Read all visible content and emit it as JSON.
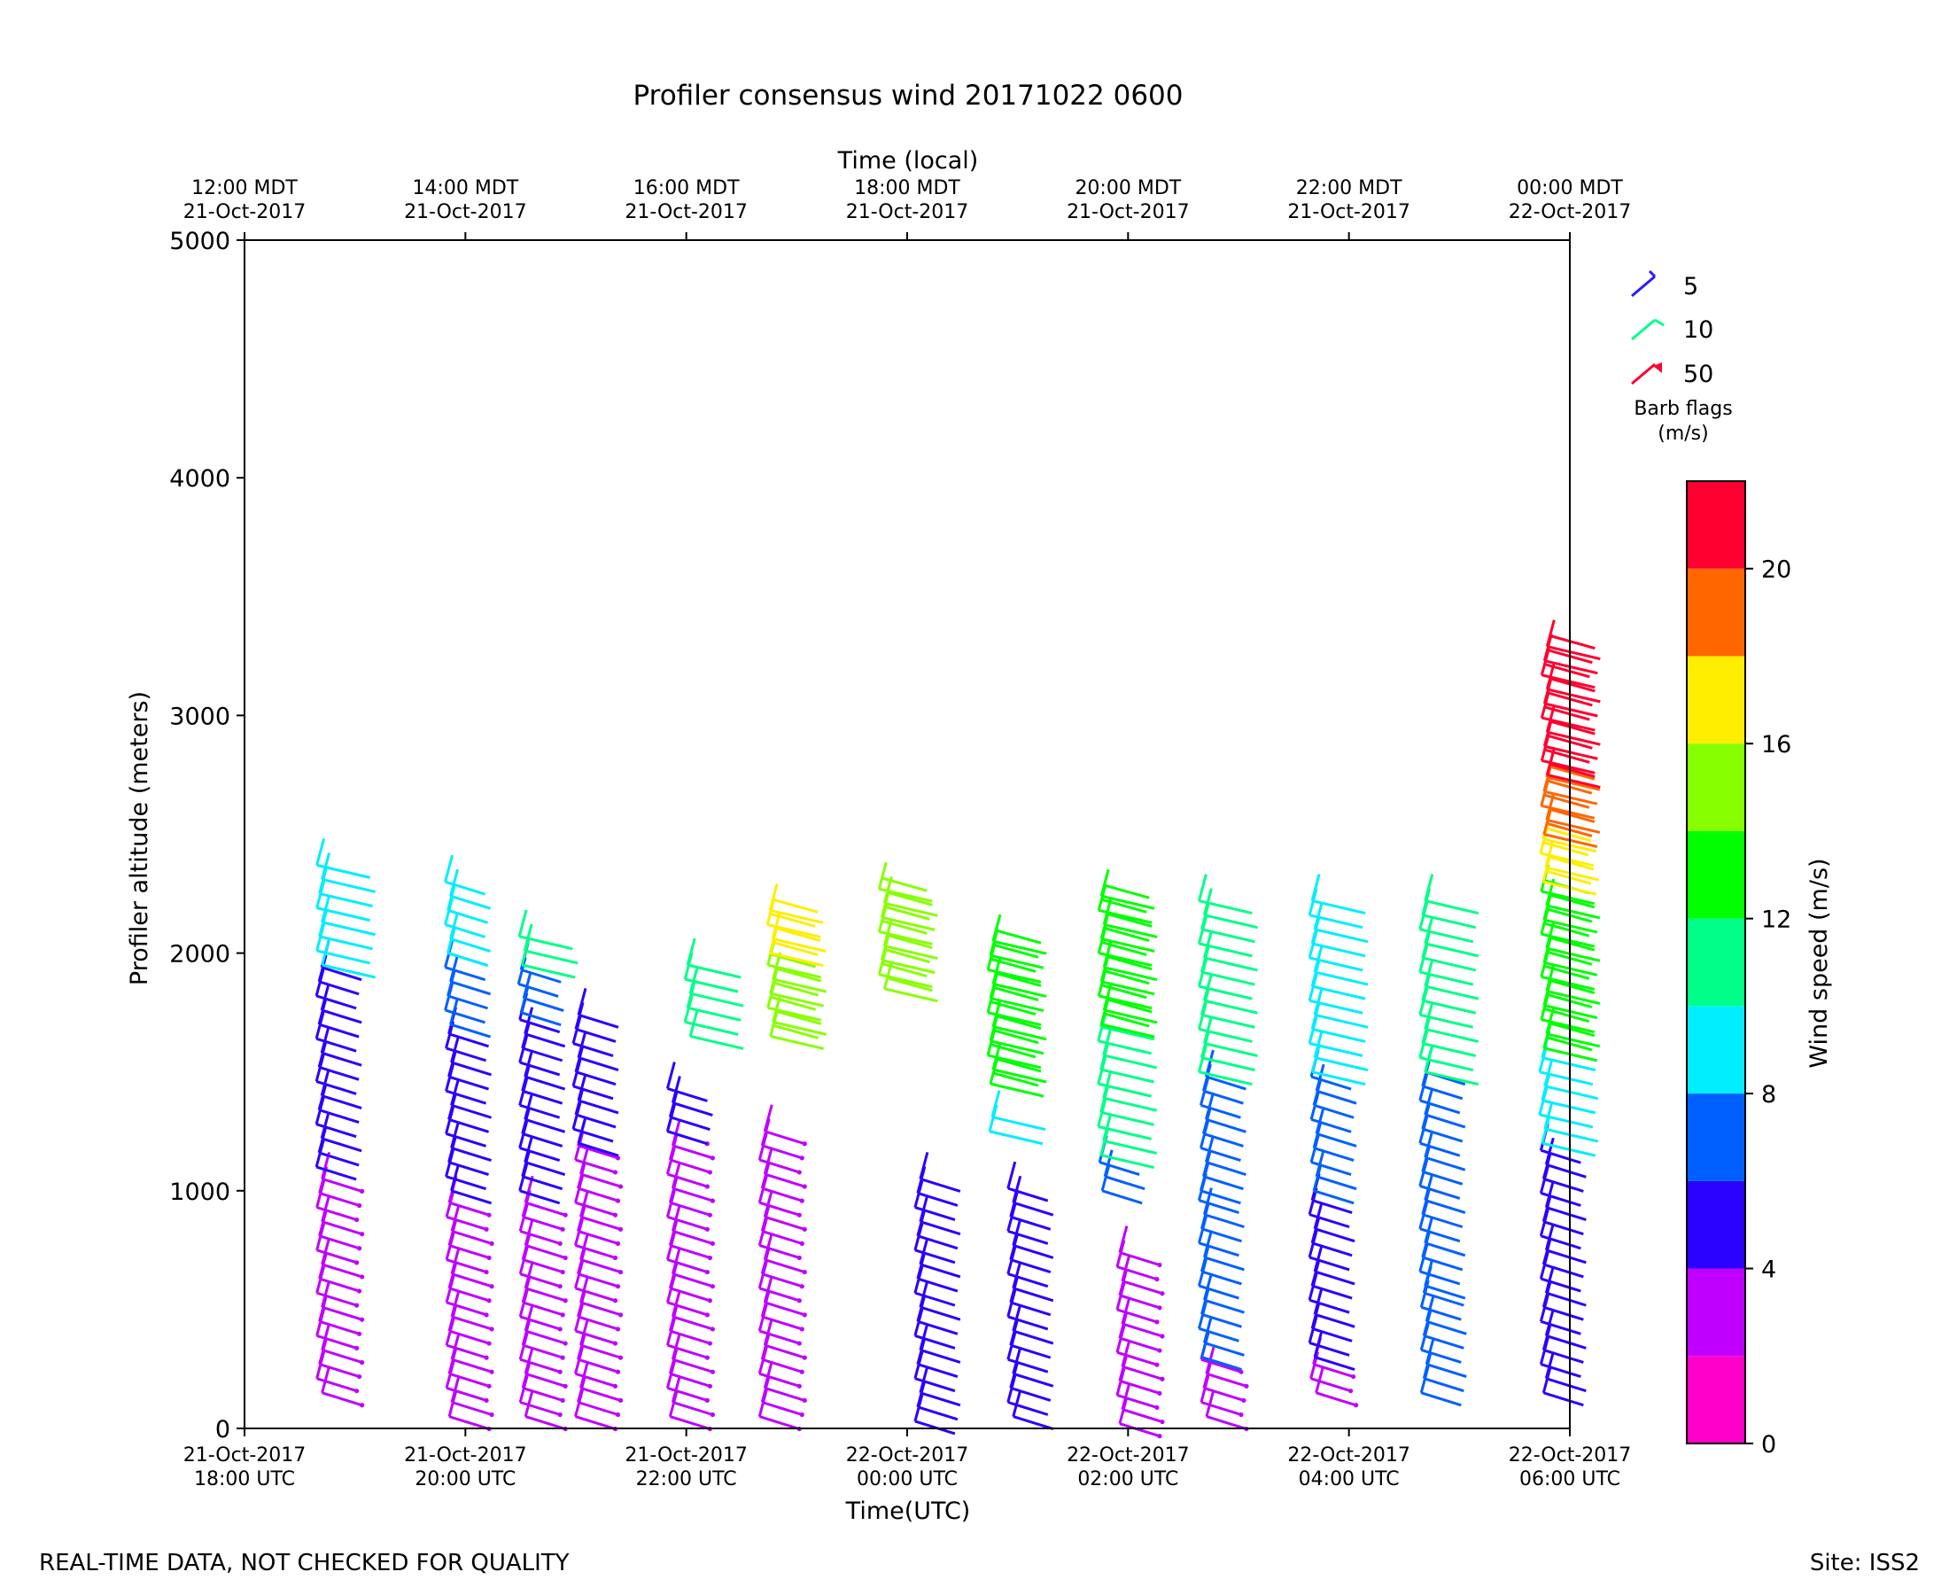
{
  "chart_data": {
    "type": "wind-barb",
    "title": "Profiler consensus wind 20171022 0600",
    "top_axis_label": "Time (local)",
    "xlabel": "Time(UTC)",
    "ylabel": "Profiler altitude (meters)",
    "ylim": [
      0,
      5000
    ],
    "y_ticks": [
      "0",
      "1000",
      "2000",
      "3000",
      "4000",
      "5000"
    ],
    "x_ticks_utc": [
      {
        "date": "21-Oct-2017",
        "time": "18:00 UTC"
      },
      {
        "date": "21-Oct-2017",
        "time": "20:00 UTC"
      },
      {
        "date": "21-Oct-2017",
        "time": "22:00 UTC"
      },
      {
        "date": "22-Oct-2017",
        "time": "00:00 UTC"
      },
      {
        "date": "22-Oct-2017",
        "time": "02:00 UTC"
      },
      {
        "date": "22-Oct-2017",
        "time": "04:00 UTC"
      },
      {
        "date": "22-Oct-2017",
        "time": "06:00 UTC"
      }
    ],
    "x_ticks_local": [
      {
        "time": "12:00 MDT",
        "date": "21-Oct-2017"
      },
      {
        "time": "14:00 MDT",
        "date": "21-Oct-2017"
      },
      {
        "time": "16:00 MDT",
        "date": "21-Oct-2017"
      },
      {
        "time": "18:00 MDT",
        "date": "21-Oct-2017"
      },
      {
        "time": "20:00 MDT",
        "date": "21-Oct-2017"
      },
      {
        "time": "22:00 MDT",
        "date": "21-Oct-2017"
      },
      {
        "time": "00:00 MDT",
        "date": "22-Oct-2017"
      }
    ],
    "barb_legend": {
      "entries": [
        {
          "label": "5",
          "color": "#2a1aff"
        },
        {
          "label": "10",
          "color": "#00ff88"
        },
        {
          "label": "50",
          "color": "#ff0030"
        }
      ],
      "title": "Barb flags",
      "units": "(m/s)"
    },
    "colorbar": {
      "label": "Wind speed (m/s)",
      "ticks": [
        "0",
        "4",
        "8",
        "12",
        "16",
        "20"
      ],
      "range": [
        0,
        22
      ],
      "bins": [
        {
          "min": 0,
          "max": 2,
          "color": "#ff00c8"
        },
        {
          "min": 2,
          "max": 4,
          "color": "#c000ff"
        },
        {
          "min": 4,
          "max": 6,
          "color": "#2a00ff"
        },
        {
          "min": 6,
          "max": 8,
          "color": "#0060ff"
        },
        {
          "min": 8,
          "max": 10,
          "color": "#00eeff"
        },
        {
          "min": 10,
          "max": 12,
          "color": "#00ff88"
        },
        {
          "min": 12,
          "max": 14,
          "color": "#00ff00"
        },
        {
          "min": 14,
          "max": 16,
          "color": "#88ff00"
        },
        {
          "min": 16,
          "max": 18,
          "color": "#ffee00"
        },
        {
          "min": 18,
          "max": 20,
          "color": "#ff6600"
        },
        {
          "min": 20,
          "max": 22,
          "color": "#ff0030"
        }
      ]
    },
    "profiles": [
      {
        "time_utc": "18:40",
        "max_alt": 2400,
        "segments": [
          [
            150,
            1100,
            2
          ],
          [
            1100,
            1950,
            5
          ],
          [
            1950,
            2400,
            9
          ]
        ]
      },
      {
        "time_utc": "19:50",
        "max_alt": 2300,
        "segments": [
          [
            50,
            1000,
            3
          ],
          [
            1000,
            1700,
            5
          ],
          [
            1700,
            2000,
            7
          ],
          [
            2000,
            2300,
            8
          ]
        ]
      },
      {
        "time_utc": "20:30",
        "max_alt": 2100,
        "segments": [
          [
            50,
            1000,
            3
          ],
          [
            1000,
            1750,
            5
          ],
          [
            1750,
            1950,
            7
          ],
          [
            1950,
            2100,
            11
          ]
        ]
      },
      {
        "time_utc": "21:00",
        "max_alt": 1750,
        "segments": [
          [
            50,
            1200,
            3
          ],
          [
            1200,
            1750,
            5
          ]
        ]
      },
      {
        "time_utc": "21:50",
        "max_alt": 1450,
        "segments": [
          [
            50,
            1250,
            3
          ],
          [
            1250,
            1450,
            5
          ]
        ]
      },
      {
        "time_utc": "22:00",
        "max_alt": 2000,
        "segments": [
          [
            1650,
            2000,
            11
          ]
        ]
      },
      {
        "time_utc": "22:40",
        "max_alt": 1250,
        "segments": [
          [
            50,
            1250,
            3
          ]
        ]
      },
      {
        "time_utc": "22:45",
        "max_alt": 2200,
        "segments": [
          [
            1650,
            2000,
            15
          ],
          [
            2000,
            2200,
            17
          ]
        ]
      },
      {
        "time_utc": "23:45",
        "max_alt": 2300,
        "segments": [
          [
            1850,
            2300,
            15
          ]
        ]
      },
      {
        "time_utc": "00:05",
        "max_alt": 1050,
        "segments": [
          [
            30,
            1050,
            5
          ]
        ]
      },
      {
        "time_utc": "00:45",
        "max_alt": 2080,
        "segments": [
          [
            1250,
            1350,
            9
          ],
          [
            1450,
            2080,
            13
          ]
        ]
      },
      {
        "time_utc": "00:55",
        "max_alt": 1050,
        "segments": [
          [
            50,
            1050,
            5
          ]
        ]
      },
      {
        "time_utc": "01:45",
        "max_alt": 2250,
        "segments": [
          [
            1000,
            1150,
            7
          ],
          [
            1150,
            1700,
            10
          ],
          [
            1700,
            2250,
            13
          ]
        ]
      },
      {
        "time_utc": "01:55",
        "max_alt": 780,
        "segments": [
          [
            20,
            780,
            3
          ]
        ]
      },
      {
        "time_utc": "02:40",
        "max_alt": 2250,
        "segments": [
          [
            50,
            300,
            2
          ],
          [
            300,
            1000,
            7
          ],
          [
            1000,
            1500,
            7
          ],
          [
            1500,
            2250,
            10
          ]
        ]
      },
      {
        "time_utc": "03:40",
        "max_alt": 2250,
        "segments": [
          [
            150,
            300,
            3
          ],
          [
            300,
            1000,
            5
          ],
          [
            1000,
            1500,
            7
          ],
          [
            1500,
            2250,
            9
          ]
        ]
      },
      {
        "time_utc": "04:40",
        "max_alt": 2250,
        "segments": [
          [
            150,
            600,
            6
          ],
          [
            600,
            1500,
            6
          ],
          [
            1500,
            2250,
            10
          ]
        ]
      },
      {
        "time_utc": "05:45",
        "max_alt": 3300,
        "segments": [
          [
            150,
            1200,
            5
          ],
          [
            1200,
            1600,
            9
          ],
          [
            1600,
            2300,
            13
          ],
          [
            2300,
            2500,
            17
          ],
          [
            2500,
            2750,
            19
          ],
          [
            2750,
            3300,
            21
          ]
        ]
      }
    ]
  },
  "footer": {
    "left": "REAL-TIME DATA, NOT CHECKED FOR QUALITY",
    "right": "Site: ISS2"
  }
}
